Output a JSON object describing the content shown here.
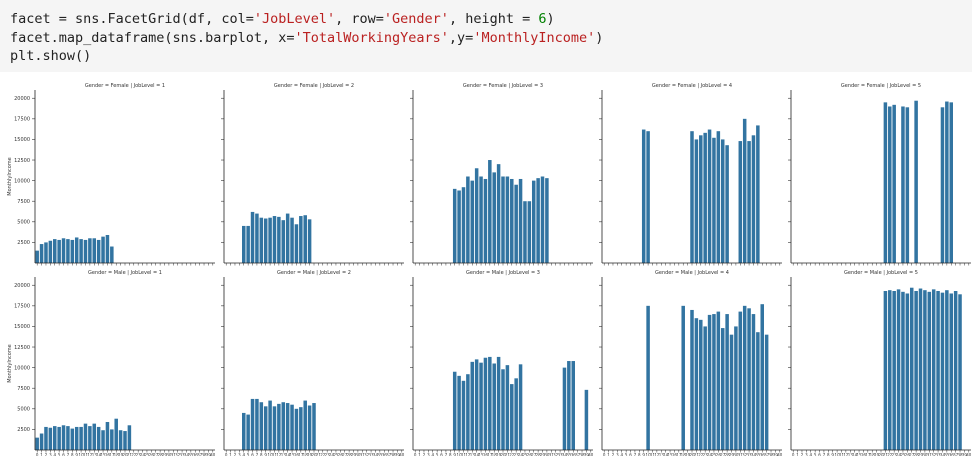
{
  "code": {
    "lines": [
      [
        {
          "text": "facet = sns.FacetGrid(df, col=",
          "style": "plain"
        },
        {
          "text": "'JobLevel'",
          "style": "string"
        },
        {
          "text": ", row=",
          "style": "plain"
        },
        {
          "text": "'Gender'",
          "style": "string"
        },
        {
          "text": ", height = ",
          "style": "plain"
        },
        {
          "text": "6",
          "style": "number"
        },
        {
          "text": ")",
          "style": "plain"
        }
      ],
      [
        {
          "text": "facet.map_dataframe(sns.barplot, x=",
          "style": "plain"
        },
        {
          "text": "'TotalWorkingYears'",
          "style": "string"
        },
        {
          "text": ",y=",
          "style": "plain"
        },
        {
          "text": "'MonthlyIncome'",
          "style": "string"
        },
        {
          "text": ")",
          "style": "plain"
        }
      ],
      [
        {
          "text": "plt.show()",
          "style": "plain"
        }
      ]
    ]
  },
  "chart_data": {
    "type": "bar",
    "color": "#3274a1",
    "y_label": "MonthlyIncome",
    "ylim": [
      0,
      21000
    ],
    "yticks": [
      2500,
      5000,
      7500,
      10000,
      12500,
      15000,
      17500,
      20000
    ],
    "categories": [
      0,
      1,
      2,
      3,
      4,
      5,
      6,
      7,
      8,
      9,
      10,
      11,
      12,
      13,
      14,
      15,
      16,
      17,
      18,
      19,
      20,
      21,
      22,
      23,
      24,
      25,
      26,
      27,
      28,
      29,
      30,
      31,
      32,
      33,
      34,
      35,
      36,
      37,
      38,
      39,
      40
    ],
    "facets": [
      {
        "title": "Gender = Female | JobLevel = 1",
        "values": [
          1500,
          2300,
          2500,
          2700,
          2900,
          2800,
          3000,
          2900,
          2800,
          3100,
          2900,
          2800,
          3000,
          3000,
          2800,
          3200,
          3400,
          2000,
          null,
          null,
          null,
          null,
          null,
          null,
          null,
          null,
          null,
          null,
          null,
          null,
          null,
          null,
          null,
          null,
          null,
          null,
          null,
          null,
          null,
          null,
          null
        ]
      },
      {
        "title": "Gender = Female | JobLevel = 2",
        "values": [
          null,
          null,
          null,
          null,
          4500,
          4500,
          6200,
          6000,
          5500,
          5400,
          5500,
          5700,
          5600,
          5200,
          6000,
          5500,
          4700,
          5700,
          5800,
          5300,
          null,
          null,
          null,
          null,
          null,
          null,
          null,
          null,
          null,
          null,
          null,
          null,
          null,
          null,
          null,
          null,
          null,
          null,
          null,
          null,
          null
        ]
      },
      {
        "title": "Gender = Female | JobLevel = 3",
        "values": [
          null,
          null,
          null,
          null,
          null,
          null,
          null,
          null,
          null,
          9000,
          8800,
          9200,
          10500,
          10000,
          11500,
          10500,
          10200,
          12500,
          11000,
          12000,
          10500,
          10500,
          10200,
          9500,
          10200,
          7500,
          7500,
          10000,
          10300,
          10500,
          10300,
          null,
          null,
          null,
          null,
          null,
          null,
          null,
          null,
          null,
          null
        ]
      },
      {
        "title": "Gender = Female | JobLevel = 4",
        "values": [
          null,
          null,
          null,
          null,
          null,
          null,
          null,
          null,
          null,
          16200,
          16000,
          null,
          null,
          null,
          null,
          null,
          null,
          null,
          null,
          null,
          16000,
          15000,
          15500,
          15800,
          16200,
          15200,
          16000,
          15000,
          14300,
          null,
          null,
          14800,
          17500,
          14800,
          15500,
          16700,
          null,
          null,
          null,
          null,
          null
        ]
      },
      {
        "title": "Gender = Female | JobLevel = 5",
        "values": [
          null,
          null,
          null,
          null,
          null,
          null,
          null,
          null,
          null,
          null,
          null,
          null,
          null,
          null,
          null,
          null,
          null,
          null,
          null,
          null,
          null,
          19500,
          19000,
          19200,
          null,
          19000,
          18900,
          null,
          19700,
          null,
          null,
          null,
          null,
          null,
          18900,
          19600,
          19500,
          null,
          null,
          null,
          null
        ]
      },
      {
        "title": "Gender = Male | JobLevel = 1",
        "values": [
          1500,
          2000,
          2800,
          2700,
          2900,
          2800,
          3000,
          2900,
          2600,
          2800,
          2800,
          3200,
          2900,
          3200,
          2800,
          2400,
          3400,
          2500,
          3800,
          2400,
          2300,
          3000,
          null,
          null,
          null,
          null,
          null,
          null,
          null,
          null,
          null,
          null,
          null,
          null,
          null,
          null,
          null,
          null,
          null,
          null,
          null
        ]
      },
      {
        "title": "Gender = Male | JobLevel = 2",
        "values": [
          null,
          null,
          null,
          null,
          4500,
          4300,
          6200,
          6200,
          5800,
          5300,
          6000,
          5300,
          5600,
          5800,
          5700,
          5500,
          5000,
          5200,
          6000,
          5400,
          5700,
          null,
          null,
          null,
          null,
          null,
          null,
          null,
          null,
          null,
          null,
          null,
          null,
          null,
          null,
          null,
          null,
          null,
          null,
          null,
          null
        ]
      },
      {
        "title": "Gender = Male | JobLevel = 3",
        "values": [
          null,
          null,
          null,
          null,
          null,
          null,
          null,
          null,
          null,
          9500,
          9000,
          8400,
          9200,
          10700,
          11000,
          10600,
          11200,
          11300,
          10500,
          11300,
          9800,
          10300,
          8000,
          8700,
          10400,
          null,
          null,
          null,
          null,
          null,
          null,
          null,
          null,
          null,
          10000,
          10800,
          10800,
          null,
          null,
          7300,
          null
        ]
      },
      {
        "title": "Gender = Male | JobLevel = 4",
        "values": [
          null,
          null,
          null,
          null,
          null,
          null,
          null,
          null,
          null,
          null,
          17500,
          null,
          null,
          null,
          null,
          null,
          null,
          null,
          17500,
          null,
          17000,
          16000,
          15800,
          15000,
          16400,
          16500,
          16800,
          14800,
          16500,
          14000,
          15000,
          16800,
          17500,
          17200,
          16500,
          14300,
          17700,
          14000,
          null,
          null,
          null
        ]
      },
      {
        "title": "Gender = Male | JobLevel = 5",
        "values": [
          null,
          null,
          null,
          null,
          null,
          null,
          null,
          null,
          null,
          null,
          null,
          null,
          null,
          null,
          null,
          null,
          null,
          null,
          null,
          null,
          null,
          19300,
          19400,
          19300,
          19500,
          19200,
          19000,
          19700,
          19300,
          19600,
          19400,
          19200,
          19500,
          19300,
          19100,
          19400,
          19000,
          19300,
          18900,
          null,
          null
        ]
      }
    ]
  }
}
